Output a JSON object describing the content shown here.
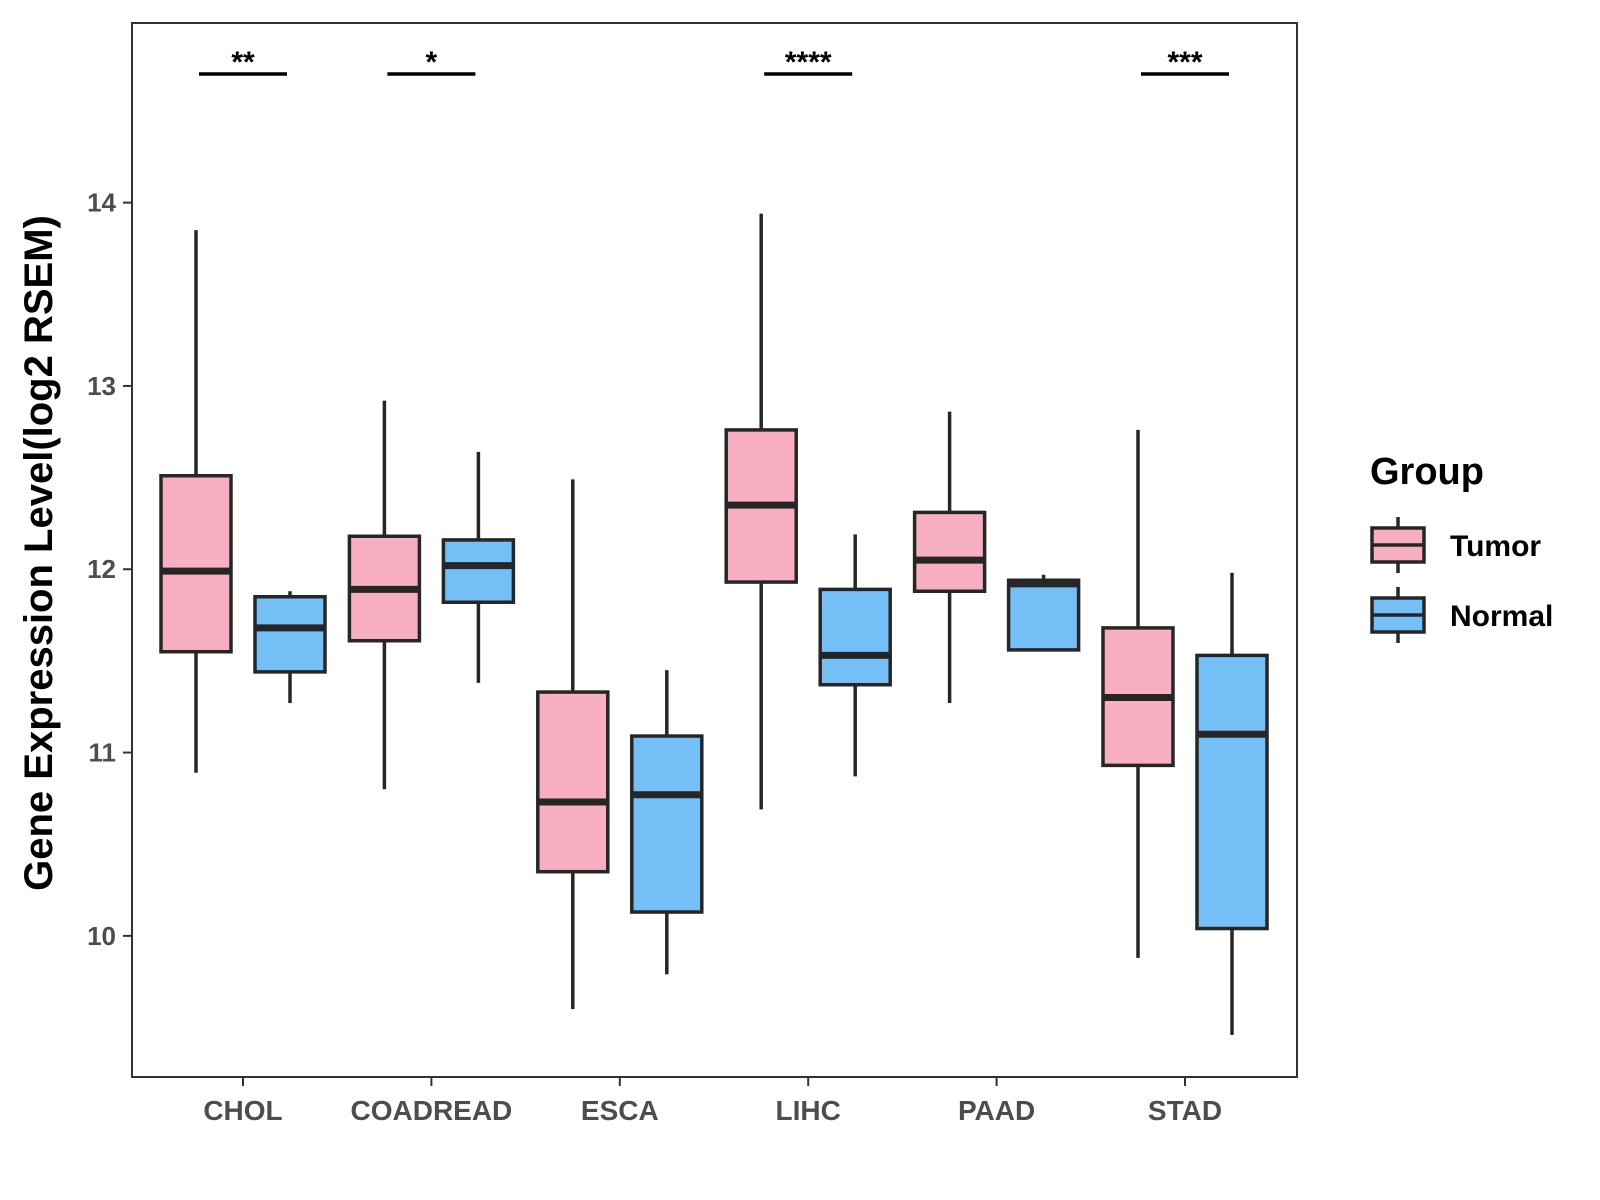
{
  "chart_data": {
    "type": "boxplot",
    "title": "",
    "xlabel": "",
    "ylabel": "Gene Expression Level(log2 RSEM)",
    "ylim": [
      9.23,
      14.98
    ],
    "yticks": [
      10,
      11,
      12,
      13,
      14
    ],
    "categories": [
      "CHOL",
      "COADREAD",
      "ESCA",
      "LIHC",
      "PAAD",
      "STAD"
    ],
    "legend": {
      "title": "Group",
      "position": "right",
      "entries": [
        "Tumor",
        "Normal"
      ]
    },
    "series": [
      {
        "name": "Tumor",
        "color": "#F9AFC2",
        "boxes": [
          {
            "category": "CHOL",
            "min": 10.89,
            "q1": 11.55,
            "median": 11.99,
            "q3": 12.51,
            "max": 13.85
          },
          {
            "category": "COADREAD",
            "min": 10.8,
            "q1": 11.61,
            "median": 11.89,
            "q3": 12.18,
            "max": 12.92
          },
          {
            "category": "ESCA",
            "min": 9.6,
            "q1": 10.35,
            "median": 10.73,
            "q3": 11.33,
            "max": 12.49
          },
          {
            "category": "LIHC",
            "min": 10.69,
            "q1": 11.93,
            "median": 12.35,
            "q3": 12.76,
            "max": 13.94
          },
          {
            "category": "PAAD",
            "min": 11.27,
            "q1": 11.88,
            "median": 12.05,
            "q3": 12.31,
            "max": 12.86
          },
          {
            "category": "STAD",
            "min": 9.88,
            "q1": 10.93,
            "median": 11.3,
            "q3": 11.68,
            "max": 12.76
          }
        ]
      },
      {
        "name": "Normal",
        "color": "#74BFF6",
        "boxes": [
          {
            "category": "CHOL",
            "min": 11.27,
            "q1": 11.44,
            "median": 11.68,
            "q3": 11.85,
            "max": 11.88
          },
          {
            "category": "COADREAD",
            "min": 11.38,
            "q1": 11.82,
            "median": 12.02,
            "q3": 12.16,
            "max": 12.64
          },
          {
            "category": "ESCA",
            "min": 9.79,
            "q1": 10.13,
            "median": 10.77,
            "q3": 11.09,
            "max": 11.45
          },
          {
            "category": "LIHC",
            "min": 10.87,
            "q1": 11.37,
            "median": 11.53,
            "q3": 11.89,
            "max": 12.19
          },
          {
            "category": "PAAD",
            "min": 11.56,
            "q1": 11.56,
            "median": 11.92,
            "q3": 11.94,
            "max": 11.97
          },
          {
            "category": "STAD",
            "min": 9.46,
            "q1": 10.04,
            "median": 11.1,
            "q3": 11.53,
            "max": 11.98
          }
        ]
      }
    ],
    "significance": [
      {
        "category": "CHOL",
        "label": "**"
      },
      {
        "category": "COADREAD",
        "label": "*"
      },
      {
        "category": "LIHC",
        "label": "****"
      },
      {
        "category": "STAD",
        "label": "***"
      }
    ]
  }
}
